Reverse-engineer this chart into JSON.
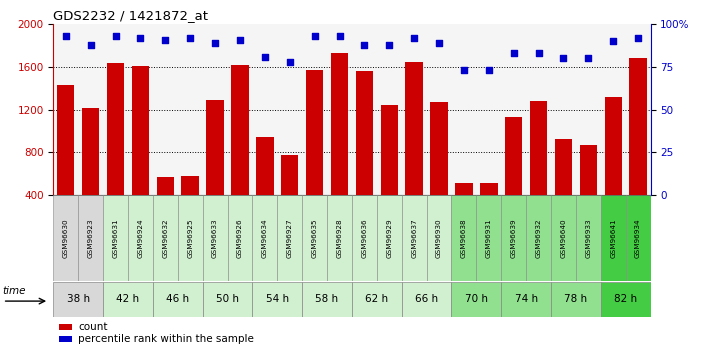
{
  "title": "GDS2232 / 1421872_at",
  "samples": [
    "GSM96630",
    "GSM96923",
    "GSM96631",
    "GSM96924",
    "GSM96632",
    "GSM96925",
    "GSM96633",
    "GSM96926",
    "GSM96634",
    "GSM96927",
    "GSM96635",
    "GSM96928",
    "GSM96636",
    "GSM96929",
    "GSM96637",
    "GSM96930",
    "GSM96638",
    "GSM96931",
    "GSM96639",
    "GSM96932",
    "GSM96640",
    "GSM96933",
    "GSM96641",
    "GSM96934"
  ],
  "counts": [
    1430,
    1210,
    1640,
    1610,
    570,
    580,
    1290,
    1620,
    940,
    770,
    1570,
    1730,
    1560,
    1240,
    1650,
    1270,
    510,
    510,
    1130,
    1280,
    920,
    870,
    1320,
    1680
  ],
  "percentile_ranks": [
    93,
    88,
    93,
    92,
    91,
    92,
    89,
    91,
    81,
    78,
    93,
    93,
    88,
    88,
    92,
    89,
    73,
    73,
    83,
    83,
    80,
    80,
    90,
    92
  ],
  "time_groups": [
    {
      "label": "38 h",
      "indices": [
        0,
        1
      ],
      "color": "#d8d8d8"
    },
    {
      "label": "42 h",
      "indices": [
        2,
        3
      ],
      "color": "#d0f0d0"
    },
    {
      "label": "46 h",
      "indices": [
        4,
        5
      ],
      "color": "#d0f0d0"
    },
    {
      "label": "50 h",
      "indices": [
        6,
        7
      ],
      "color": "#d0f0d0"
    },
    {
      "label": "54 h",
      "indices": [
        8,
        9
      ],
      "color": "#d0f0d0"
    },
    {
      "label": "58 h",
      "indices": [
        10,
        11
      ],
      "color": "#d0f0d0"
    },
    {
      "label": "62 h",
      "indices": [
        12,
        13
      ],
      "color": "#d0f0d0"
    },
    {
      "label": "66 h",
      "indices": [
        14,
        15
      ],
      "color": "#d0f0d0"
    },
    {
      "label": "70 h",
      "indices": [
        16,
        17
      ],
      "color": "#90e090"
    },
    {
      "label": "74 h",
      "indices": [
        18,
        19
      ],
      "color": "#90e090"
    },
    {
      "label": "78 h",
      "indices": [
        20,
        21
      ],
      "color": "#90e090"
    },
    {
      "label": "82 h",
      "indices": [
        22,
        23
      ],
      "color": "#44cc44"
    }
  ],
  "sample_cell_colors": [
    "#d8d8d8",
    "#d8d8d8",
    "#d0f0d0",
    "#d0f0d0",
    "#d0f0d0",
    "#d0f0d0",
    "#d0f0d0",
    "#d0f0d0",
    "#d0f0d0",
    "#d0f0d0",
    "#d0f0d0",
    "#d0f0d0",
    "#d0f0d0",
    "#d0f0d0",
    "#d0f0d0",
    "#d0f0d0",
    "#90e090",
    "#90e090",
    "#90e090",
    "#90e090",
    "#90e090",
    "#90e090",
    "#44cc44",
    "#44cc44"
  ],
  "bar_color": "#cc0000",
  "dot_color": "#0000cc",
  "ylim_left": [
    400,
    2000
  ],
  "ylim_right": [
    0,
    100
  ],
  "yticks_left": [
    400,
    800,
    1200,
    1600,
    2000
  ],
  "yticks_right": [
    0,
    25,
    50,
    75,
    100
  ],
  "grid_values": [
    800,
    1200,
    1600
  ],
  "plot_bg": "#f5f5f5",
  "fig_width": 7.11,
  "fig_height": 3.45,
  "dpi": 100
}
